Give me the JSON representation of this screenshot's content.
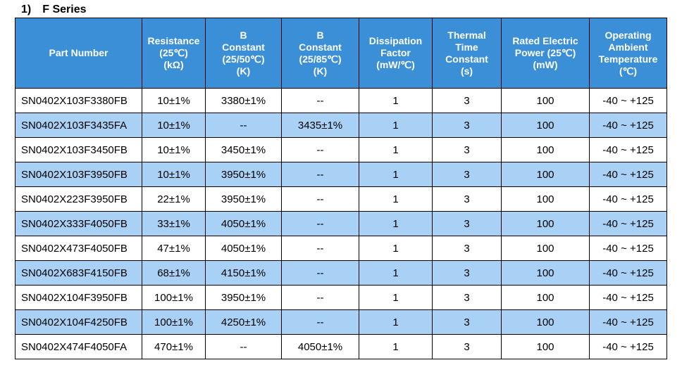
{
  "section": {
    "number": "1)",
    "title": "F Series"
  },
  "colors": {
    "header_bg": "#3b8fd6",
    "header_text": "#ffffff",
    "alt_row_bg": "#a9d0f5",
    "row_bg": "#ffffff"
  },
  "table": {
    "headers": [
      {
        "lines": [
          "Part Number"
        ]
      },
      {
        "lines": [
          "Resistance",
          "(25℃)",
          "(kΩ)"
        ]
      },
      {
        "lines": [
          "B",
          "Constant",
          "(25/50℃)",
          "(K)"
        ]
      },
      {
        "lines": [
          "B",
          "Constant",
          "(25/85℃)",
          "(K)"
        ]
      },
      {
        "lines": [
          "Dissipation",
          "Factor",
          "(mW/℃)"
        ]
      },
      {
        "lines": [
          "Thermal",
          "Time",
          "Constant",
          "(s)"
        ]
      },
      {
        "lines": [
          "Rated Electric",
          "Power (25℃)",
          "(mW)"
        ]
      },
      {
        "lines": [
          "Operating",
          "Ambient",
          "Temperature",
          "(℃)"
        ]
      }
    ],
    "rows": [
      [
        "SN0402X103F3380FB",
        "10±1%",
        "3380±1%",
        "--",
        "1",
        "3",
        "100",
        "-40 ~ +125"
      ],
      [
        "SN0402X103F3435FA",
        "10±1%",
        "--",
        "3435±1%",
        "1",
        "3",
        "100",
        "-40 ~ +125"
      ],
      [
        "SN0402X103F3450FB",
        "10±1%",
        "3450±1%",
        "--",
        "1",
        "3",
        "100",
        "-40 ~ +125"
      ],
      [
        "SN0402X103F3950FB",
        "10±1%",
        "3950±1%",
        "--",
        "1",
        "3",
        "100",
        "-40 ~ +125"
      ],
      [
        "SN0402X223F3950FB",
        "22±1%",
        "3950±1%",
        "--",
        "1",
        "3",
        "100",
        "-40 ~ +125"
      ],
      [
        "SN0402X333F4050FB",
        "33±1%",
        "4050±1%",
        "--",
        "1",
        "3",
        "100",
        "-40 ~ +125"
      ],
      [
        "SN0402X473F4050FB",
        "47±1%",
        "4050±1%",
        "--",
        "1",
        "3",
        "100",
        "-40 ~ +125"
      ],
      [
        "SN0402X683F4150FB",
        "68±1%",
        "4150±1%",
        "--",
        "1",
        "3",
        "100",
        "-40 ~ +125"
      ],
      [
        "SN0402X104F3950FB",
        "100±1%",
        "3950±1%",
        "--",
        "1",
        "3",
        "100",
        "-40 ~ +125"
      ],
      [
        "SN0402X104F4250FB",
        "100±1%",
        "4250±1%",
        "--",
        "1",
        "3",
        "100",
        "-40 ~ +125"
      ],
      [
        "SN0402X474F4050FA",
        "470±1%",
        "--",
        "4050±1%",
        "1",
        "3",
        "100",
        "-40 ~ +125"
      ]
    ]
  }
}
